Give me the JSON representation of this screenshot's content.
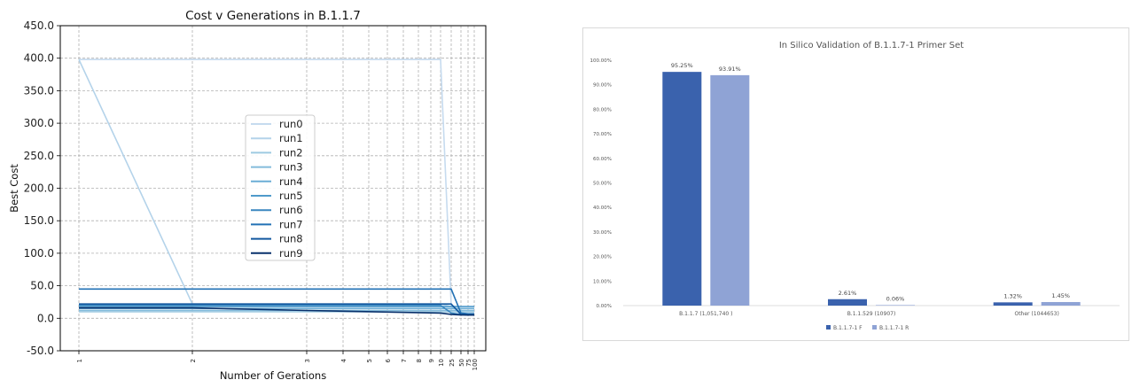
{
  "chart_data": [
    {
      "type": "line",
      "title": "Cost v Generations in B.1.1.7",
      "xlabel": "Number of Gerations",
      "ylabel": "Best Cost",
      "x_ticks": [
        "1",
        "2",
        "3",
        "4",
        "5",
        "6",
        "7",
        "8",
        "9",
        "10",
        "25",
        "50",
        "75",
        "100"
      ],
      "y_ticks": [
        "-50.0",
        "0.0",
        "50.0",
        "100.0",
        "150.0",
        "200.0",
        "250.0",
        "300.0",
        "350.0",
        "400.0",
        "450.0"
      ],
      "ylim": [
        -50,
        450
      ],
      "x_scale": "categorical",
      "grid": true,
      "legend_position": "center-right",
      "colors": [
        "#c6dbef",
        "#b4d3ea",
        "#9ecae1",
        "#83bbdb",
        "#6baed6",
        "#4f9acb",
        "#3a87c0",
        "#2171b5",
        "#12589f",
        "#08306b"
      ],
      "series": [
        {
          "name": "run0",
          "points": [
            [
              "1",
              398
            ],
            [
              "10",
              398
            ],
            [
              "25",
              20
            ],
            [
              "50",
              6
            ],
            [
              "75",
              5
            ],
            [
              "100",
              5
            ]
          ]
        },
        {
          "name": "run1",
          "points": [
            [
              "1",
              398
            ],
            [
              "2",
              22
            ],
            [
              "10",
              22
            ],
            [
              "25",
              18
            ],
            [
              "50",
              10
            ],
            [
              "75",
              10
            ],
            [
              "100",
              10
            ]
          ]
        },
        {
          "name": "run2",
          "points": [
            [
              "1",
              10
            ],
            [
              "10",
              10
            ],
            [
              "25",
              10
            ],
            [
              "50",
              10
            ],
            [
              "75",
              10
            ],
            [
              "100",
              10
            ]
          ]
        },
        {
          "name": "run3",
          "points": [
            [
              "1",
              12
            ],
            [
              "10",
              12
            ],
            [
              "25",
              12
            ],
            [
              "50",
              12
            ],
            [
              "75",
              12
            ],
            [
              "100",
              12
            ]
          ]
        },
        {
          "name": "run4",
          "points": [
            [
              "1",
              15
            ],
            [
              "10",
              15
            ],
            [
              "25",
              15
            ],
            [
              "50",
              15
            ],
            [
              "75",
              15
            ],
            [
              "100",
              15
            ]
          ]
        },
        {
          "name": "run5",
          "points": [
            [
              "1",
              18
            ],
            [
              "10",
              18
            ],
            [
              "25",
              18
            ],
            [
              "50",
              18
            ],
            [
              "75",
              18
            ],
            [
              "100",
              18
            ]
          ]
        },
        {
          "name": "run6",
          "points": [
            [
              "1",
              20
            ],
            [
              "10",
              20
            ],
            [
              "25",
              8
            ],
            [
              "50",
              6
            ],
            [
              "75",
              5
            ],
            [
              "100",
              5
            ]
          ]
        },
        {
          "name": "run7",
          "points": [
            [
              "1",
              45
            ],
            [
              "10",
              45
            ],
            [
              "25",
              45
            ],
            [
              "50",
              8
            ],
            [
              "75",
              7
            ],
            [
              "100",
              7
            ]
          ]
        },
        {
          "name": "run8",
          "points": [
            [
              "1",
              22
            ],
            [
              "10",
              22
            ],
            [
              "25",
              22
            ],
            [
              "50",
              6
            ],
            [
              "75",
              5
            ],
            [
              "100",
              5
            ]
          ]
        },
        {
          "name": "run9",
          "points": [
            [
              "1",
              16
            ],
            [
              "2",
              16
            ],
            [
              "3",
              12
            ],
            [
              "10",
              8
            ],
            [
              "25",
              6
            ],
            [
              "50",
              5
            ],
            [
              "75",
              5
            ],
            [
              "100",
              5
            ]
          ]
        }
      ]
    },
    {
      "type": "bar",
      "title": "In Silico Validation of B.1.1.7-1 Primer Set",
      "categories": [
        "B.1.1.7 (1,051,740 )",
        "B.1.1.529 (10907)",
        "Other (1044653)"
      ],
      "series": [
        {
          "name": "B.1.1.7-1 F",
          "values": [
            95.25,
            2.61,
            1.32
          ],
          "labels": [
            "95.25%",
            "2.61%",
            "1.32%"
          ],
          "color": "#3a62ad"
        },
        {
          "name": "B.1.1.7-1 R",
          "values": [
            93.91,
            0.06,
            1.45
          ],
          "labels": [
            "93.91%",
            "0.06%",
            "1.45%"
          ],
          "color": "#8fa3d5"
        }
      ],
      "y_ticks": [
        "0.00%",
        "10.00%",
        "20.00%",
        "30.00%",
        "40.00%",
        "50.00%",
        "60.00%",
        "70.00%",
        "80.00%",
        "90.00%",
        "100.00%"
      ],
      "ylim": [
        0,
        100
      ],
      "grid": false,
      "legend_position": "bottom"
    }
  ]
}
